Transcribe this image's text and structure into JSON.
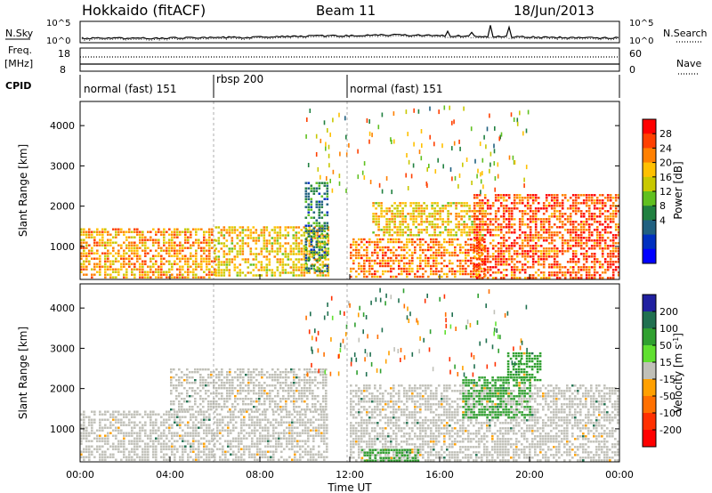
{
  "header": {
    "station": "Hokkaido (fitACF)",
    "beam": "Beam 11",
    "date": "18/Jun/2013"
  },
  "noise_panel": {
    "left_label": "N.Sky",
    "right_label": "N.Search",
    "y_ticks_left": [
      "10^5",
      "10^0"
    ],
    "y_ticks_right": [
      "10^5",
      "10^0"
    ]
  },
  "freq_panel": {
    "left_label_1": "Freq.",
    "left_label_2": "[MHz]",
    "right_label": "Nave",
    "y_ticks_left": [
      "18",
      "8"
    ],
    "y_ticks_right": [
      "60",
      "0"
    ]
  },
  "cpid_panel": {
    "label": "CPID",
    "segments": [
      {
        "label": "normal (fast) 151",
        "start_hour": 0,
        "end_hour": 6
      },
      {
        "label": "rbsp 200",
        "start_hour": 6,
        "end_hour": 12
      },
      {
        "label": "normal (fast) 151",
        "start_hour": 12,
        "end_hour": 24
      }
    ]
  },
  "power_colorbar": {
    "title": "Power [dB]",
    "ticks": [
      "28",
      "24",
      "20",
      "16",
      "12",
      "8",
      "4"
    ],
    "colors": [
      "#ff0000",
      "#ff4000",
      "#ff8000",
      "#ffc000",
      "#c8c800",
      "#60c020",
      "#208040",
      "#206080",
      "#0030c0",
      "#0000ff"
    ]
  },
  "velocity_colorbar": {
    "title": "Velocity [m s",
    "title_sup": "-1",
    "title_end": "]",
    "ticks": [
      "200",
      "100",
      "50",
      "15",
      "-15",
      "-50",
      "-100",
      "-200"
    ],
    "colors": [
      "#2020a0",
      "#207050",
      "#30a030",
      "#60e030",
      "#c0c0b8",
      "#ffa000",
      "#ff7000",
      "#ff3000",
      "#ff0000"
    ]
  },
  "x_axis": {
    "ticks": [
      "00:00",
      "04:00",
      "08:00",
      "12:00",
      "16:00",
      "20:00",
      "00:00"
    ],
    "label": "Time UT"
  },
  "chart_data": [
    {
      "type": "heatmap",
      "name": "power",
      "ylabel": "Slant Range [km]",
      "yticks": [
        1000,
        2000,
        3000,
        4000
      ],
      "ylim": [
        180,
        4600
      ],
      "xlim_hours": [
        0,
        24
      ],
      "xticks_hours": [
        0,
        4,
        8,
        12,
        16,
        20,
        24
      ],
      "echo_regions": [
        {
          "t0": 0,
          "t1": 6,
          "r0": 200,
          "r1": 1450,
          "level": 24
        },
        {
          "t0": 6,
          "t1": 11,
          "r0": 300,
          "r1": 1500,
          "level": 22
        },
        {
          "t0": 10,
          "t1": 11,
          "r0": 400,
          "r1": 2600,
          "level": 12
        },
        {
          "t0": 12,
          "t1": 18,
          "r0": 250,
          "r1": 1200,
          "level": 26
        },
        {
          "t0": 13,
          "t1": 18,
          "r0": 1300,
          "r1": 2100,
          "level": 22
        },
        {
          "t0": 17.5,
          "t1": 24,
          "r0": 200,
          "r1": 2300,
          "level": 28
        }
      ]
    },
    {
      "type": "heatmap",
      "name": "velocity",
      "ylabel": "Slant Range [km]",
      "yticks": [
        1000,
        2000,
        3000,
        4000
      ],
      "ylim": [
        180,
        4600
      ],
      "xlim_hours": [
        0,
        24
      ],
      "xticks_hours": [
        0,
        4,
        8,
        12,
        16,
        20,
        24
      ],
      "echo_regions": [
        {
          "t0": 0,
          "t1": 11,
          "r0": 200,
          "r1": 1450,
          "velocity": 0
        },
        {
          "t0": 4,
          "t1": 11,
          "r0": 1500,
          "r1": 2500,
          "velocity": 0
        },
        {
          "t0": 12,
          "t1": 24,
          "r0": 200,
          "r1": 2100,
          "velocity": 0
        },
        {
          "t0": 17,
          "t1": 20,
          "r0": 1300,
          "r1": 2300,
          "velocity": 40
        },
        {
          "t0": 12.5,
          "t1": 15,
          "r0": 200,
          "r1": 500,
          "velocity": 40
        },
        {
          "t0": 19,
          "t1": 20.5,
          "r0": 2200,
          "r1": 2900,
          "velocity": 40
        }
      ]
    }
  ]
}
